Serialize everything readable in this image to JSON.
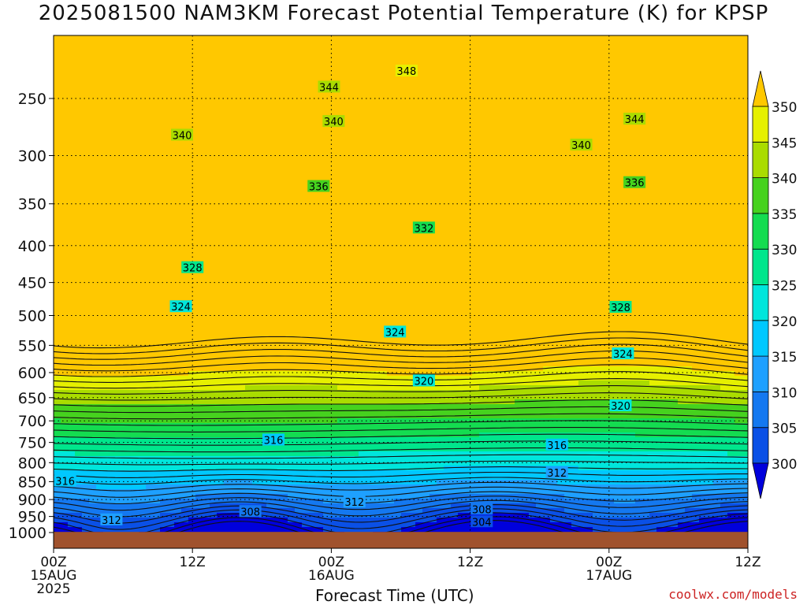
{
  "title": "2025081500 NAM3KM Forecast Potential Temperature (K) for KPSP",
  "credit": "coolwx.com/models",
  "chart_data": {
    "type": "contour",
    "title": "2025081500 NAM3KM Forecast Potential Temperature (K) for KPSP",
    "xlabel": "Forecast Time (UTC)",
    "ylabel": "",
    "x_ticks": [
      {
        "hour": 0,
        "lines": [
          "00Z",
          "15AUG",
          "2025"
        ]
      },
      {
        "hour": 12,
        "lines": [
          "12Z"
        ]
      },
      {
        "hour": 24,
        "lines": [
          "00Z",
          "16AUG"
        ]
      },
      {
        "hour": 36,
        "lines": [
          "12Z"
        ]
      },
      {
        "hour": 48,
        "lines": [
          "00Z",
          "17AUG"
        ]
      },
      {
        "hour": 60,
        "lines": [
          "12Z"
        ]
      }
    ],
    "xlim": [
      0,
      60
    ],
    "y_scale": "log (pressure)",
    "y_ticks": [
      250,
      300,
      350,
      400,
      450,
      500,
      550,
      600,
      650,
      700,
      750,
      800,
      850,
      900,
      950,
      1000
    ],
    "ylim_hpa": [
      200,
      1030
    ],
    "grid": true,
    "colorbar": {
      "levels": [
        300,
        305,
        310,
        315,
        320,
        325,
        330,
        335,
        340,
        345,
        350
      ],
      "colors": [
        "#0000dc",
        "#0a50e6",
        "#1478f0",
        "#1ea0ff",
        "#00c8ff",
        "#00e6dc",
        "#00e68c",
        "#14dc50",
        "#46d21e",
        "#aadc00",
        "#e6f000",
        "#ffe600",
        "#ffc800"
      ],
      "extend": "both"
    },
    "contour_interval_k": 2,
    "contour_labels": [
      {
        "value": 348,
        "hour": 30.5,
        "hpa": 229
      },
      {
        "value": 344,
        "hour": 23.8,
        "hpa": 241
      },
      {
        "value": 344,
        "hour": 50.2,
        "hpa": 267
      },
      {
        "value": 340,
        "hour": 11.1,
        "hpa": 281
      },
      {
        "value": 340,
        "hour": 24.2,
        "hpa": 269
      },
      {
        "value": 340,
        "hour": 45.6,
        "hpa": 290
      },
      {
        "value": 336,
        "hour": 22.9,
        "hpa": 331
      },
      {
        "value": 336,
        "hour": 50.2,
        "hpa": 327
      },
      {
        "value": 332,
        "hour": 32.0,
        "hpa": 378
      },
      {
        "value": 328,
        "hour": 12.0,
        "hpa": 429
      },
      {
        "value": 328,
        "hour": 49.0,
        "hpa": 487
      },
      {
        "value": 324,
        "hour": 11.0,
        "hpa": 486
      },
      {
        "value": 324,
        "hour": 29.5,
        "hpa": 527
      },
      {
        "value": 324,
        "hour": 49.2,
        "hpa": 565
      },
      {
        "value": 320,
        "hour": 32.0,
        "hpa": 616
      },
      {
        "value": 320,
        "hour": 49.0,
        "hpa": 667
      },
      {
        "value": 316,
        "hour": 19.0,
        "hpa": 744
      },
      {
        "value": 316,
        "hour": 43.5,
        "hpa": 756
      },
      {
        "value": 316,
        "hour": 1.0,
        "hpa": 848
      },
      {
        "value": 312,
        "hour": 43.5,
        "hpa": 826
      },
      {
        "value": 312,
        "hour": 26.0,
        "hpa": 907
      },
      {
        "value": 312,
        "hour": 5.0,
        "hpa": 960
      },
      {
        "value": 308,
        "hour": 17.0,
        "hpa": 935
      },
      {
        "value": 308,
        "hour": 37.0,
        "hpa": 928
      },
      {
        "value": 304,
        "hour": 37.0,
        "hpa": 966
      }
    ],
    "ground_hpa": 998
  }
}
